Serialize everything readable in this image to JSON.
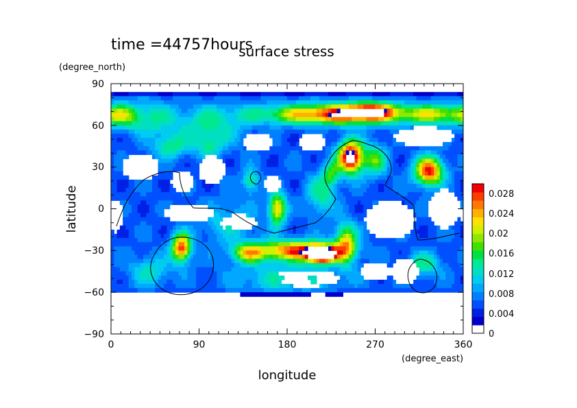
{
  "chart_data": {
    "type": "heatmap",
    "time_label": "time =44757hours",
    "title": "surface stress",
    "xlabel": "longitude",
    "ylabel": "latitude",
    "x_units": "(degree_east)",
    "y_units": "(degree_north)",
    "xlim": [
      0,
      360
    ],
    "ylim": [
      -90,
      90
    ],
    "x_ticks": [
      "0",
      "90",
      "180",
      "270",
      "360"
    ],
    "y_ticks": [
      "90",
      "60",
      "30",
      "0",
      "−30",
      "−60",
      "−90"
    ],
    "colorbar": {
      "min": 0,
      "max": 0.03,
      "tick_labels": [
        "0.028",
        "0.024",
        "0.02",
        "0.016",
        "0.012",
        "0.008",
        "0.004",
        "0"
      ],
      "colors": [
        "#ffffff",
        "#0000c8",
        "#0020e6",
        "#0050ff",
        "#0080ff",
        "#00a8ff",
        "#00ccf0",
        "#00e0c0",
        "#00e890",
        "#00e040",
        "#40e000",
        "#90e800",
        "#d0f000",
        "#ffe000",
        "#ffb000",
        "#ff7800",
        "#ff3c00",
        "#f00000"
      ]
    },
    "field": {
      "background": 0.003,
      "features": [
        {
          "lon": 10,
          "lat": 67,
          "amp": 0.012,
          "sx": 12,
          "sy": 6
        },
        {
          "lon": 40,
          "lat": 65,
          "amp": 0.008,
          "sx": 18,
          "sy": 8
        },
        {
          "lon": 100,
          "lat": 60,
          "amp": 0.008,
          "sx": 25,
          "sy": 10
        },
        {
          "lon": 60,
          "lat": 45,
          "amp": 0.009,
          "sx": 12,
          "sy": 6
        },
        {
          "lon": 100,
          "lat": 45,
          "amp": 0.007,
          "sx": 10,
          "sy": 6
        },
        {
          "lon": 235,
          "lat": 68,
          "amp": 0.026,
          "sx": 55,
          "sy": 5
        },
        {
          "lon": 265,
          "lat": 71,
          "amp": 0.014,
          "sx": 18,
          "sy": 4
        },
        {
          "lon": 335,
          "lat": 68,
          "amp": 0.012,
          "sx": 18,
          "sy": 5
        },
        {
          "lon": 245,
          "lat": 37,
          "amp": 0.032,
          "sx": 9,
          "sy": 8
        },
        {
          "lon": 270,
          "lat": 35,
          "amp": 0.012,
          "sx": 8,
          "sy": 8
        },
        {
          "lon": 325,
          "lat": 27,
          "amp": 0.026,
          "sx": 10,
          "sy": 7
        },
        {
          "lon": 170,
          "lat": 0,
          "amp": 0.02,
          "sx": 6,
          "sy": 8
        },
        {
          "lon": 143,
          "lat": 20,
          "amp": 0.01,
          "sx": 6,
          "sy": 6
        },
        {
          "lon": 215,
          "lat": 10,
          "amp": 0.009,
          "sx": 10,
          "sy": 10
        },
        {
          "lon": 225,
          "lat": 25,
          "amp": 0.011,
          "sx": 6,
          "sy": 6
        },
        {
          "lon": 120,
          "lat": -10,
          "amp": 0.006,
          "sx": 20,
          "sy": 10
        },
        {
          "lon": 190,
          "lat": -30,
          "amp": 0.024,
          "sx": 30,
          "sy": 5
        },
        {
          "lon": 215,
          "lat": -33,
          "amp": 0.034,
          "sx": 10,
          "sy": 4
        },
        {
          "lon": 240,
          "lat": -25,
          "amp": 0.018,
          "sx": 8,
          "sy": 10
        },
        {
          "lon": 140,
          "lat": -32,
          "amp": 0.014,
          "sx": 12,
          "sy": 5
        },
        {
          "lon": 72,
          "lat": -28,
          "amp": 0.025,
          "sx": 7,
          "sy": 7
        },
        {
          "lon": 40,
          "lat": -45,
          "amp": 0.007,
          "sx": 15,
          "sy": 8
        },
        {
          "lon": 320,
          "lat": -40,
          "amp": 0.009,
          "sx": 12,
          "sy": 6
        },
        {
          "lon": 180,
          "lat": -50,
          "amp": 0.007,
          "sx": 40,
          "sy": 8
        }
      ],
      "holes": [
        {
          "lon": 30,
          "lat": 30,
          "sx": 16,
          "sy": 8
        },
        {
          "lon": 103,
          "lat": 28,
          "sx": 12,
          "sy": 9
        },
        {
          "lon": 73,
          "lat": 20,
          "sx": 10,
          "sy": 7
        },
        {
          "lon": 205,
          "lat": 48,
          "sx": 12,
          "sy": 6
        },
        {
          "lon": 320,
          "lat": 52,
          "sx": 26,
          "sy": 6
        },
        {
          "lon": 150,
          "lat": 48,
          "sx": 12,
          "sy": 6
        },
        {
          "lon": 165,
          "lat": 18,
          "sx": 8,
          "sy": 5
        },
        {
          "lon": 80,
          "lat": -3,
          "sx": 22,
          "sy": 6
        },
        {
          "lon": 130,
          "lat": -10,
          "sx": 16,
          "sy": 5
        },
        {
          "lon": 5,
          "lat": -5,
          "sx": 6,
          "sy": 10
        },
        {
          "lon": 285,
          "lat": -8,
          "sx": 22,
          "sy": 12
        },
        {
          "lon": 340,
          "lat": 0,
          "sx": 14,
          "sy": 12
        },
        {
          "lon": 300,
          "lat": -45,
          "sx": 12,
          "sy": 8
        },
        {
          "lon": 200,
          "lat": -50,
          "sx": 30,
          "sy": 5
        },
        {
          "lon": 270,
          "lat": -45,
          "sx": 12,
          "sy": 6
        }
      ],
      "white_above": 84,
      "white_below": -62
    }
  }
}
